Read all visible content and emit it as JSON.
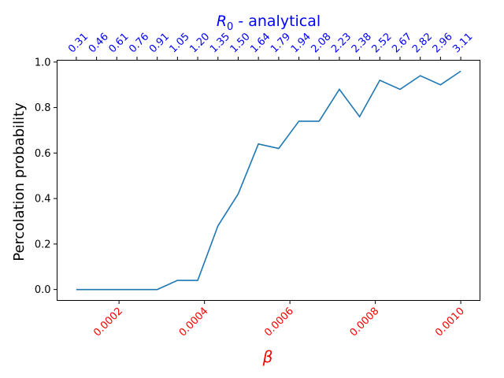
{
  "chart_data": {
    "type": "line",
    "title": "",
    "xlabel": "β",
    "xlabel_color": "#ff0000",
    "ylabel": "Percolation probability",
    "top_axis_label": "R0 - analytical",
    "top_axis_color": "#0000ff",
    "line_color": "#1f77b4",
    "grid": false,
    "xlim": [
      5.5e-05,
      0.001045
    ],
    "ylim": [
      -0.048,
      1.008
    ],
    "x_ticks": [
      0.0002,
      0.0004,
      0.0006,
      0.0008,
      0.001
    ],
    "x_tick_labels": [
      "0.0002",
      "0.0004",
      "0.0006",
      "0.0008",
      "0.0010"
    ],
    "y_ticks": [
      0.0,
      0.2,
      0.4,
      0.6,
      0.8,
      1.0
    ],
    "y_tick_labels": [
      "0.0",
      "0.2",
      "0.4",
      "0.6",
      "0.8",
      "1.0"
    ],
    "top_tick_labels": [
      "0.31",
      "0.46",
      "0.61",
      "0.76",
      "0.91",
      "1.05",
      "1.20",
      "1.35",
      "1.50",
      "1.64",
      "1.79",
      "1.94",
      "2.08",
      "2.23",
      "2.38",
      "2.52",
      "2.67",
      "2.82",
      "2.96",
      "3.11"
    ],
    "series": [
      {
        "x": [
          0.0001,
          0.0001474,
          0.0001947,
          0.0002421,
          0.0002895,
          0.0003368,
          0.0003842,
          0.0004316,
          0.0004789,
          0.0005263,
          0.0005737,
          0.0006211,
          0.0006684,
          0.0007158,
          0.0007632,
          0.0008105,
          0.0008579,
          0.0009053,
          0.0009526,
          0.001
        ],
        "y": [
          0.0,
          0.0,
          0.0,
          0.0,
          0.0,
          0.04,
          0.04,
          0.28,
          0.42,
          0.64,
          0.62,
          0.74,
          0.74,
          0.88,
          0.76,
          0.92,
          0.88,
          0.94,
          0.9,
          0.96
        ]
      }
    ]
  }
}
